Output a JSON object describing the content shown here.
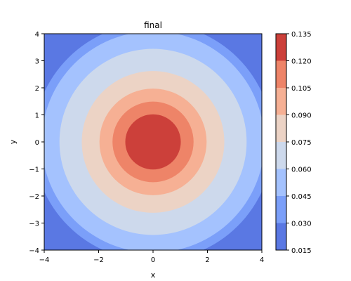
{
  "chart_data": {
    "type": "contour-filled",
    "title": "final",
    "xlabel": "x",
    "ylabel": "y",
    "xlim": [
      -4,
      4
    ],
    "ylim": [
      -4,
      4
    ],
    "x_ticks": [
      -4,
      -2,
      0,
      2,
      4
    ],
    "x_tick_labels": [
      "−4",
      "−2",
      "0",
      "2",
      "4"
    ],
    "y_ticks": [
      -4,
      -3,
      -2,
      -1,
      0,
      1,
      2,
      3,
      4
    ],
    "y_tick_labels": [
      "−4",
      "−3",
      "−2",
      "−1",
      "0",
      "1",
      "2",
      "3",
      "4"
    ],
    "colorbar": {
      "levels": [
        0.015,
        0.03,
        0.045,
        0.06,
        0.075,
        0.09,
        0.105,
        0.12,
        0.135
      ],
      "tick_labels": [
        "0.015",
        "0.030",
        "0.045",
        "0.060",
        "0.075",
        "0.090",
        "0.105",
        "0.120",
        "0.135"
      ],
      "colormap": "coolwarm"
    },
    "bands": [
      {
        "range": [
          0.015,
          0.03
        ],
        "color": "#5a78e3"
      },
      {
        "range": [
          0.03,
          0.045
        ],
        "color": "#7b9ff9"
      },
      {
        "range": [
          0.045,
          0.06
        ],
        "color": "#a4c2fe"
      },
      {
        "range": [
          0.06,
          0.075
        ],
        "color": "#cdd9ec"
      },
      {
        "range": [
          0.075,
          0.09
        ],
        "color": "#ecd3c5"
      },
      {
        "range": [
          0.09,
          0.105
        ],
        "color": "#f6b094"
      },
      {
        "range": [
          0.105,
          0.12
        ],
        "color": "#ee8468"
      },
      {
        "range": [
          0.12,
          0.135
        ],
        "color": "#cc403a"
      }
    ],
    "contour_radii": [
      {
        "level": 0.03,
        "radius": 4.4
      },
      {
        "level": 0.045,
        "radius": 4.09
      },
      {
        "level": 0.06,
        "radius": 3.44
      },
      {
        "level": 0.075,
        "radius": 2.62
      },
      {
        "level": 0.09,
        "radius": 1.97
      },
      {
        "level": 0.105,
        "radius": 1.49
      },
      {
        "level": 0.12,
        "radius": 1.02
      }
    ]
  }
}
